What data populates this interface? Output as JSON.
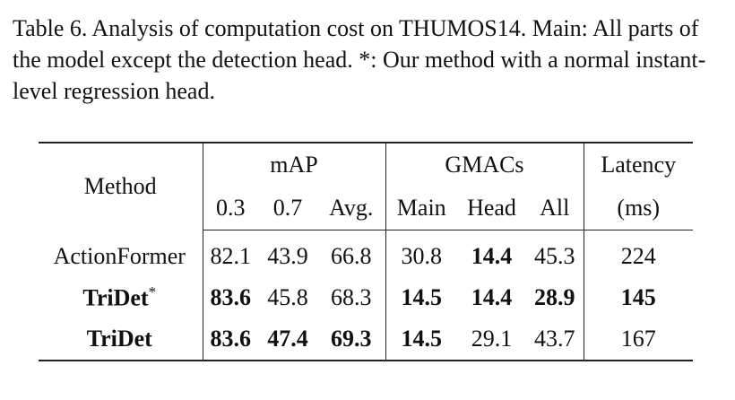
{
  "caption": "Table 6. Analysis of computation cost on THUMOS14. Main: All parts of the model except the detection head. *: Our method with a normal instant-level regression head.",
  "table": {
    "header": {
      "method": "Method",
      "map": "mAP",
      "gmacs": "GMACs",
      "latency": "Latency",
      "map_sub": [
        "0.3",
        "0.7",
        "Avg."
      ],
      "gmacs_sub": [
        "Main",
        "Head",
        "All"
      ],
      "latency_sub": "(ms)"
    },
    "rows": [
      {
        "method": "ActionFormer",
        "method_bold": false,
        "star": "",
        "cells": [
          {
            "v": "82.1",
            "b": false
          },
          {
            "v": "43.9",
            "b": false
          },
          {
            "v": "66.8",
            "b": false
          },
          {
            "v": "30.8",
            "b": false
          },
          {
            "v": "14.4",
            "b": true
          },
          {
            "v": "45.3",
            "b": false
          },
          {
            "v": "224",
            "b": false
          }
        ]
      },
      {
        "method": "TriDet",
        "method_bold": true,
        "star": "*",
        "cells": [
          {
            "v": "83.6",
            "b": true
          },
          {
            "v": "45.8",
            "b": false
          },
          {
            "v": "68.3",
            "b": false
          },
          {
            "v": "14.5",
            "b": true
          },
          {
            "v": "14.4",
            "b": true
          },
          {
            "v": "28.9",
            "b": true
          },
          {
            "v": "145",
            "b": true
          }
        ]
      },
      {
        "method": "TriDet",
        "method_bold": true,
        "star": "",
        "cells": [
          {
            "v": "83.6",
            "b": true
          },
          {
            "v": "47.4",
            "b": true
          },
          {
            "v": "69.3",
            "b": true
          },
          {
            "v": "14.5",
            "b": true
          },
          {
            "v": "29.1",
            "b": false
          },
          {
            "v": "43.7",
            "b": false
          },
          {
            "v": "167",
            "b": false
          }
        ]
      }
    ]
  }
}
